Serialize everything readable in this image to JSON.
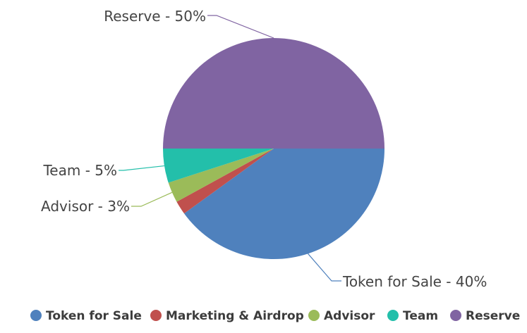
{
  "chart_data": {
    "type": "pie",
    "title": "",
    "slices": [
      {
        "name": "Token for Sale",
        "value": 40,
        "label": "Token for Sale - 40%",
        "color": "#4f81bd"
      },
      {
        "name": "Marketing & Airdrop",
        "value": 2,
        "label": "",
        "color": "#c0504d"
      },
      {
        "name": "Advisor",
        "value": 3,
        "label": "Advisor - 3%",
        "color": "#9bbb59"
      },
      {
        "name": "Team",
        "value": 5,
        "label": "Team - 5%",
        "color": "#23bfaa"
      },
      {
        "name": "Reserve",
        "value": 50,
        "label": "Reserve - 50%",
        "color": "#8064a2"
      }
    ],
    "legend": {
      "position": "bottom",
      "items": [
        "Token for Sale",
        "Marketing & Airdrop",
        "Advisor",
        "Team",
        "Reserve"
      ]
    }
  }
}
